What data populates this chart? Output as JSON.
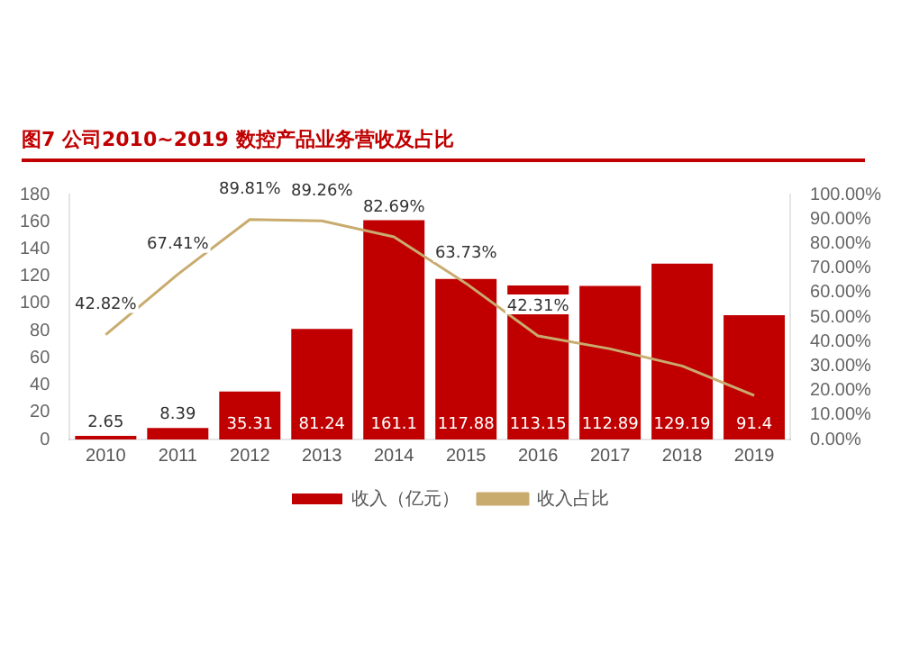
{
  "chart_data": {
    "type": "bar",
    "title": "图7 公司2010~2019 数控产品业务营收及占比",
    "categories": [
      "2010",
      "2011",
      "2012",
      "2013",
      "2014",
      "2015",
      "2016",
      "2017",
      "2018",
      "2019"
    ],
    "series": [
      {
        "name": "收入（亿元）",
        "color": "#c00000",
        "values": [
          2.65,
          8.39,
          35.31,
          81.24,
          161.1,
          117.88,
          113.15,
          112.89,
          129.19,
          91.4
        ],
        "value_labels": [
          "2.65",
          "8.39",
          "35.31",
          "81.24",
          "161.1",
          "117.88",
          "113.15",
          "112.89",
          "129.19",
          "91.4"
        ]
      },
      {
        "name": "收入占比",
        "type": "line",
        "axis": "y2",
        "color": "#c9ab6e",
        "values": [
          42.82,
          67.41,
          89.81,
          89.26,
          82.69,
          63.73,
          42.31,
          37,
          30,
          18
        ],
        "value_labels": [
          "42.82%",
          "67.41%",
          "89.81%",
          "89.26%",
          "82.69%",
          "63.73%",
          "42.31%",
          null,
          null,
          null
        ]
      }
    ],
    "ylim": [
      0,
      180
    ],
    "yticks": [
      0,
      20,
      40,
      60,
      80,
      100,
      120,
      140,
      160,
      180
    ],
    "y2lim": [
      0,
      100
    ],
    "y2ticks": [
      {
        "value": 0,
        "label": "0.00%"
      },
      {
        "value": 10,
        "label": "10.00%"
      },
      {
        "value": 20,
        "label": "20.00%"
      },
      {
        "value": 30,
        "label": "30.00%"
      },
      {
        "value": 40,
        "label": "40.00%"
      },
      {
        "value": 50,
        "label": "50.00%"
      },
      {
        "value": 60,
        "label": "60.00%"
      },
      {
        "value": 70,
        "label": "70.00%"
      },
      {
        "value": 80,
        "label": "80.00%"
      },
      {
        "value": 90,
        "label": "90.00%"
      },
      {
        "value": 100,
        "label": "100.00%"
      }
    ],
    "grid": false,
    "legend": "bottom",
    "marker": "none",
    "line_style": "solid"
  }
}
